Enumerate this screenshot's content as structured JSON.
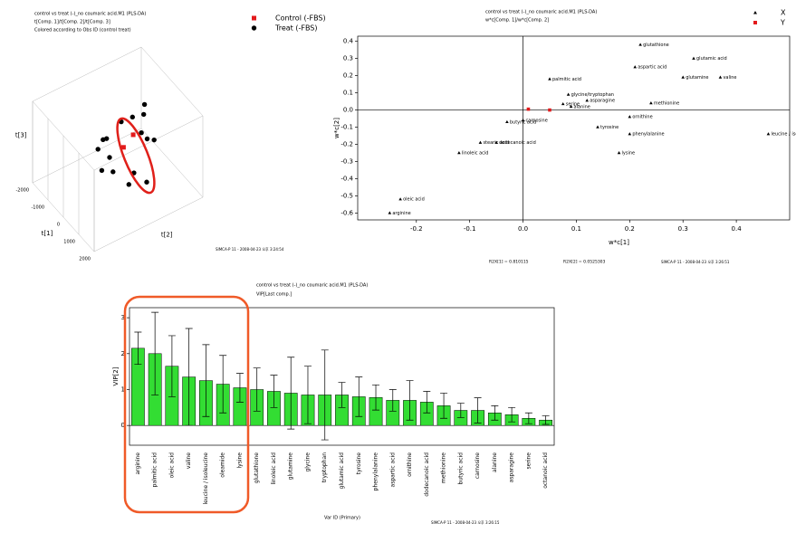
{
  "chart_data": [
    {
      "type": "scatter3d",
      "title": "control vs treat (-)_no coumaric acid.M1 (PLS-DA)",
      "subtitle": "t[Comp. 1]/t[Comp. 2]/t[Comp. 3]",
      "note": "Colored according to Obs ID (control treat)",
      "xlabel": "t[1]",
      "ylabel": "t[2]",
      "zlabel": "t[3]",
      "xlim": [
        -2000,
        2000
      ],
      "ylim": [
        -2000,
        2000
      ],
      "zlim": [
        -2000,
        2000
      ],
      "xticks": [
        -2000,
        -1000,
        0,
        1000,
        2000
      ],
      "series": [
        {
          "name": "Control (-FBS)",
          "color": "#e31a1c",
          "x": [
            200,
            300
          ],
          "y": [
            100,
            400
          ],
          "z": [
            200,
            700
          ]
        },
        {
          "name": "Treat (-FBS)",
          "color": "#000000",
          "x": [
            -300,
            -100,
            100,
            300,
            500,
            -600,
            -900,
            -400,
            0,
            400,
            700,
            900,
            -200,
            600,
            200,
            1000
          ],
          "y": [
            300,
            600,
            900,
            700,
            800,
            -200,
            100,
            -500,
            -300,
            -400,
            200,
            -100,
            1100,
            1000,
            -700,
            500
          ],
          "z": [
            900,
            1100,
            1200,
            600,
            400,
            100,
            -300,
            0,
            -200,
            -500,
            -700,
            -900,
            1300,
            300,
            -400,
            -1100
          ]
        }
      ],
      "stamp": "SIMCA-P 11 - 2008-04-23 오후 3:24:54"
    },
    {
      "type": "scatter",
      "title": "control vs treat (-)_no coumaric acid.M1 (PLS-DA)",
      "subtitle": "w*c[Comp. 1]/w*c[Comp. 2]",
      "xlabel": "w*c[1]",
      "ylabel": "w*c[2]",
      "xlim": [
        -0.31,
        0.5
      ],
      "ylim": [
        -0.64,
        0.43
      ],
      "xticks": [
        -0.2,
        -0.1,
        {
          "value": 0,
          "label": "0.0"
        },
        0.1,
        0.2,
        0.3,
        0.4
      ],
      "yticks": [
        0.4,
        0.3,
        0.2,
        0.1,
        {
          "value": 0,
          "label": "0.0"
        },
        -0.1,
        -0.2,
        -0.3,
        -0.4,
        -0.5,
        -0.6
      ],
      "series": [
        {
          "name": "X",
          "color": "#000000",
          "labels": [
            "glutathione",
            "glutamic acid",
            "aspartic acid",
            "glutamine",
            "valine",
            "palmitic acid",
            "glycine/tryptophan",
            "asparagine",
            "serine",
            "alanine",
            "methionine",
            "ornithine",
            "carnosine",
            "butyric acid",
            "tyrosine",
            "phenylalanine",
            "leucine / isoleucine",
            "stearic acid",
            "dodecanoic acid",
            "linoleic acid",
            "lysine",
            "oleic acid",
            "arginine"
          ],
          "x": [
            0.22,
            0.32,
            0.21,
            0.3,
            0.37,
            0.05,
            0.085,
            0.12,
            0.075,
            0.09,
            0.24,
            0.2,
            0.0,
            -0.03,
            0.14,
            0.2,
            0.46,
            -0.08,
            -0.05,
            -0.12,
            0.18,
            -0.23,
            -0.25
          ],
          "values": [
            0.38,
            0.3,
            0.25,
            0.19,
            0.19,
            0.18,
            0.09,
            0.055,
            0.035,
            0.02,
            0.04,
            -0.04,
            -0.06,
            -0.07,
            -0.1,
            -0.14,
            -0.14,
            -0.19,
            -0.19,
            -0.25,
            -0.25,
            -0.52,
            -0.6
          ]
        },
        {
          "name": "Y",
          "color": "#e31a1c",
          "x": [
            0.01,
            0.05
          ],
          "values": [
            0.005,
            0.0
          ]
        }
      ],
      "footer": [
        "R2X[1] = 0.810115",
        "R2X[2] = 0.0525303"
      ],
      "stamp": "SIMCA-P 11 - 2008-04-23 오후 3:26:51"
    },
    {
      "type": "bar",
      "title": "control vs treat (-)_no coumaric acid.M1 (PLS-DA)",
      "subtitle": "VIP[Last comp.]",
      "ylabel": "VIP[2]",
      "xlabel": "Var ID (Primary)",
      "color": "#33dd33",
      "ylim": [
        -0.55,
        3.28
      ],
      "yticks": [
        0,
        1,
        2,
        3
      ],
      "categories": [
        "arginine",
        "palmitic acid",
        "oleic acid",
        "valine",
        "leucine / isoleucine",
        "oleamide",
        "lysine",
        "glutathione",
        "linoleic acid",
        "glutamine",
        "glycine",
        "tryptophan",
        "glutamic acid",
        "tyrosine",
        "phenylalanine",
        "aspartic acid",
        "ornithine",
        "dodecanoic acid",
        "methionine",
        "butyric acid",
        "carnosine",
        "alanine",
        "asparagine",
        "serine",
        "octanoic acid"
      ],
      "values": [
        2.15,
        2.0,
        1.65,
        1.35,
        1.25,
        1.15,
        1.05,
        1.0,
        0.95,
        0.9,
        0.85,
        0.85,
        0.85,
        0.8,
        0.78,
        0.7,
        0.7,
        0.65,
        0.55,
        0.42,
        0.42,
        0.35,
        0.3,
        0.2,
        0.15
      ],
      "errors": [
        0.45,
        1.15,
        0.85,
        1.35,
        1.0,
        0.8,
        0.4,
        0.6,
        0.45,
        1.0,
        0.8,
        1.25,
        0.35,
        0.55,
        0.35,
        0.3,
        0.55,
        0.3,
        0.35,
        0.2,
        0.35,
        0.2,
        0.2,
        0.15,
        0.12
      ],
      "stamp": "SIMCA-P 11 - 2008-04-23 오후 3:26:15"
    }
  ]
}
